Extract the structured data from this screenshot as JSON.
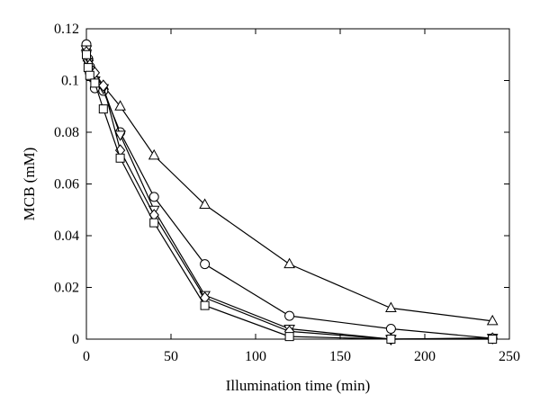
{
  "chart_data": {
    "type": "line",
    "title": "",
    "xlabel": "Illumination time (min)",
    "ylabel": "MCB (mM)",
    "xlim": [
      0,
      250
    ],
    "ylim": [
      0,
      0.12
    ],
    "xticks": [
      0,
      50,
      100,
      150,
      200,
      250
    ],
    "yticks": [
      0,
      0.02,
      0.04,
      0.06,
      0.08,
      0.1,
      0.12
    ],
    "xtick_labels": [
      "0",
      "50",
      "100",
      "150",
      "200",
      "250"
    ],
    "ytick_labels": [
      "0",
      "0.02",
      "0.04",
      "0.06",
      "0.08",
      "0.1",
      "0.12"
    ],
    "grid": false,
    "legend": "none",
    "series": [
      {
        "marker": "triangle-up",
        "x": [
          0,
          1,
          2,
          5,
          10,
          20,
          40,
          70,
          120,
          180,
          240
        ],
        "y": [
          0.113,
          0.109,
          0.106,
          0.101,
          0.098,
          0.09,
          0.071,
          0.052,
          0.029,
          0.012,
          0.007
        ]
      },
      {
        "marker": "circle",
        "x": [
          0,
          1,
          2,
          5,
          10,
          20,
          40,
          70,
          120,
          180,
          240
        ],
        "y": [
          0.114,
          0.108,
          0.103,
          0.097,
          0.096,
          0.08,
          0.055,
          0.029,
          0.009,
          0.004,
          0.0003
        ]
      },
      {
        "marker": "triangle-down",
        "x": [
          0,
          1,
          2,
          5,
          10,
          20,
          40,
          70,
          120,
          180,
          240
        ],
        "y": [
          0.112,
          0.107,
          0.104,
          0.1,
          0.097,
          0.079,
          0.05,
          0.017,
          0.004,
          0.0,
          0.0005
        ]
      },
      {
        "marker": "diamond",
        "x": [
          0,
          1,
          2,
          5,
          10,
          20,
          40,
          70,
          120,
          180,
          240
        ],
        "y": [
          0.111,
          0.109,
          0.106,
          0.103,
          0.098,
          0.073,
          0.048,
          0.016,
          0.003,
          0.0,
          0.0003
        ]
      },
      {
        "marker": "square",
        "x": [
          0,
          1,
          2,
          5,
          10,
          20,
          40,
          70,
          120,
          180,
          240
        ],
        "y": [
          0.11,
          0.105,
          0.102,
          0.099,
          0.089,
          0.07,
          0.045,
          0.013,
          0.001,
          0.0,
          0.0
        ]
      }
    ]
  }
}
